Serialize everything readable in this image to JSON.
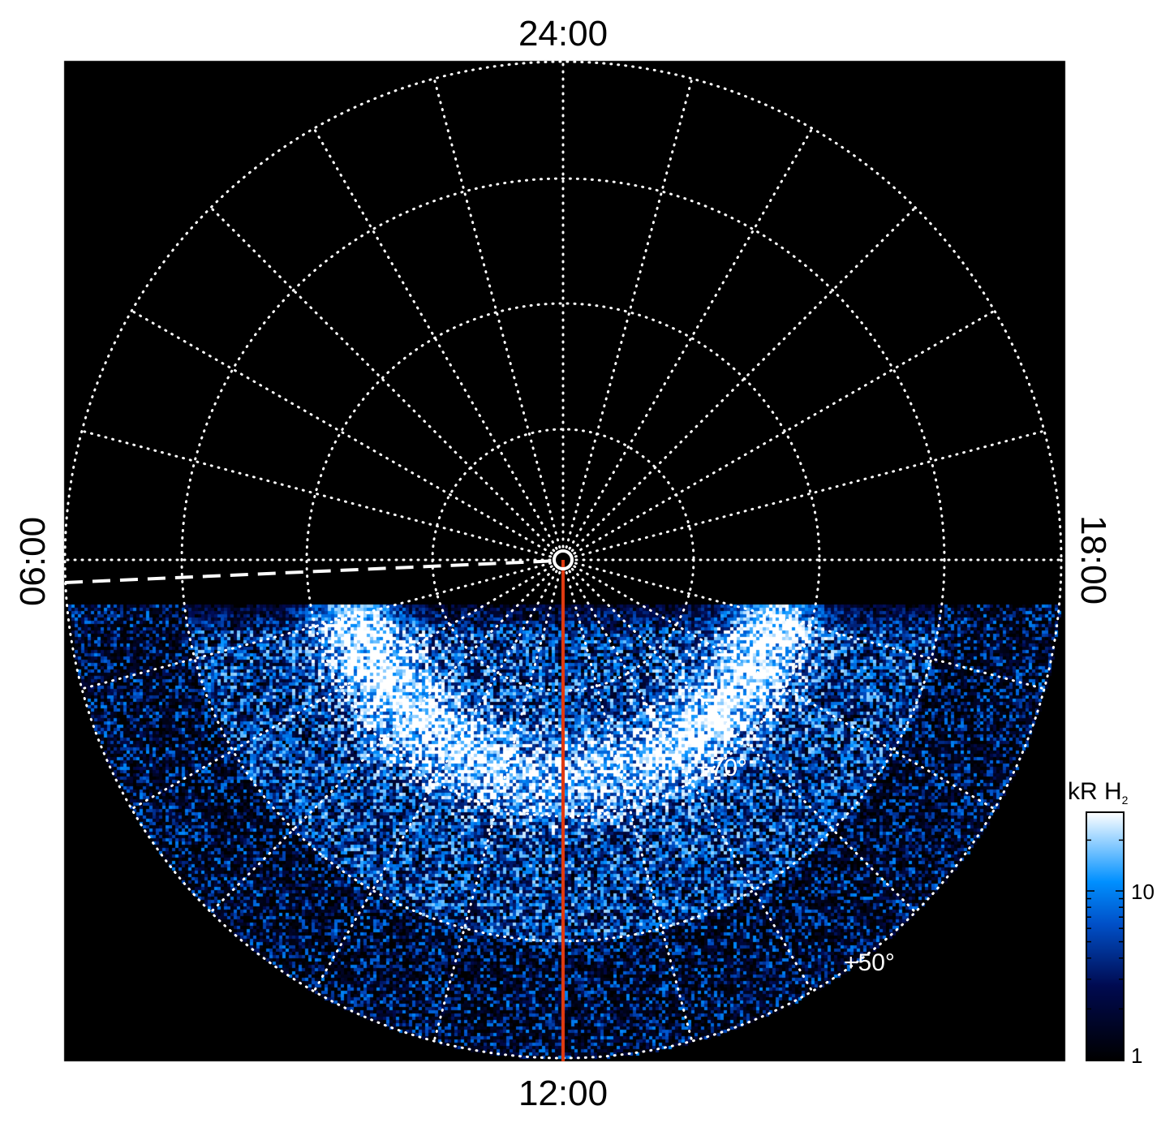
{
  "chart_data": {
    "type": "heatmap",
    "projection": "polar",
    "local_time_labels": {
      "top": "24:00",
      "bottom": "12:00",
      "left": "06:00",
      "right": "18:00"
    },
    "latitude_labels": [
      "+70°",
      "+50°"
    ],
    "latitude_rings_deg": [
      80,
      70,
      60,
      50
    ],
    "local_time_meridians_hours": 1,
    "grid": true,
    "colorbar": {
      "label": "kR H",
      "label_subscript": "2",
      "scale": "log",
      "range": [
        1,
        30
      ],
      "tick_labels": [
        "1",
        "10"
      ],
      "position": "right",
      "colors": [
        "#000000",
        "#000a50",
        "#0050c8",
        "#0090ff",
        "#ffffff"
      ]
    },
    "markers": {
      "noon_meridian_color": "#e03a10",
      "dashed_line_color": "#ffffff"
    }
  }
}
